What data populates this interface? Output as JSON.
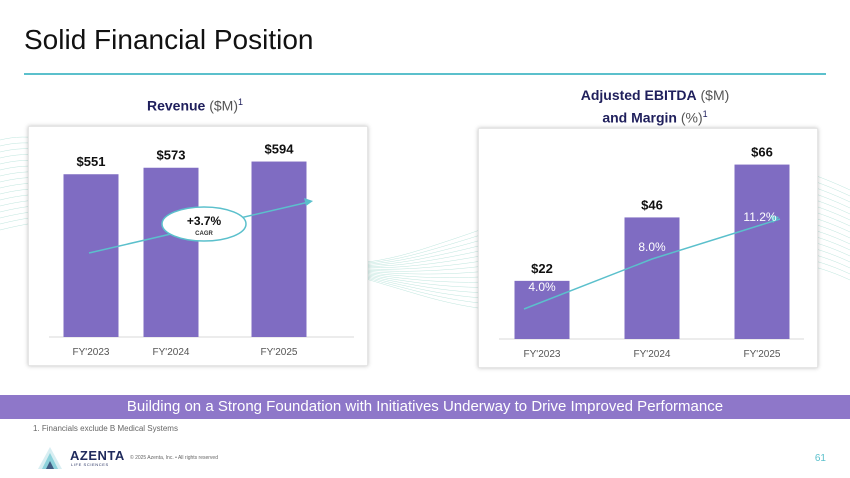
{
  "title": "Solid Financial Position",
  "revenue_chart": {
    "heading_bold": "Revenue",
    "heading_unit": "($M)",
    "heading_sup": "1"
  },
  "ebitda_chart": {
    "heading_bold_1": "Adjusted EBITDA",
    "heading_unit_1": "($M)",
    "heading_bold_2": "and Margin",
    "heading_unit_2": "(%)",
    "heading_sup": "1"
  },
  "chart_data": [
    {
      "type": "bar",
      "title": "Revenue ($M)",
      "categories": [
        "FY'2023",
        "FY'2024",
        "FY'2025"
      ],
      "values": [
        551,
        573,
        594
      ],
      "value_labels": [
        "$551",
        "$573",
        "$594"
      ],
      "ylim": [
        0,
        650
      ],
      "annotation": {
        "value": "+3.7%",
        "label": "CAGR"
      },
      "xlabel": "",
      "ylabel": ""
    },
    {
      "type": "bar",
      "title": "Adjusted EBITDA ($M) and Margin (%)",
      "categories": [
        "FY'2023",
        "FY'2024",
        "FY'2025"
      ],
      "values": [
        22,
        46,
        66
      ],
      "value_labels": [
        "$22",
        "$46",
        "$66"
      ],
      "ylim": [
        0,
        70
      ],
      "series": [
        {
          "name": "Adjusted EBITDA ($M)",
          "values": [
            22,
            46,
            66
          ]
        },
        {
          "name": "Margin (%)",
          "values": [
            4.0,
            8.0,
            11.2
          ],
          "labels": [
            "4.0%",
            "8.0%",
            "11.2%"
          ]
        }
      ],
      "xlabel": "",
      "ylabel": ""
    }
  ],
  "banner": "Building on a Strong Foundation with Initiatives Underway to Drive Improved Performance",
  "footnote": "1. Financials exclude B Medical Systems",
  "logo": {
    "name": "AZENTA",
    "sub": "LIFE SCIENCES"
  },
  "copyright": "© 2025 Azenta, Inc. • All rights reserved",
  "page_number": "61",
  "colors": {
    "bar": "#7f6cc2",
    "accent": "#5bc0cc",
    "banner": "#8e77c9",
    "heading": "#1f1f5c"
  }
}
